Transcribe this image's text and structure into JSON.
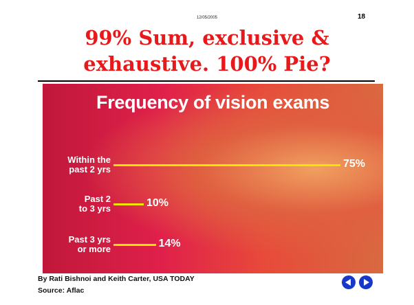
{
  "slide": {
    "date": "12/05/2005",
    "page_number": "18",
    "title": [
      "99% Sum, exclusive &",
      "exhaustive.  100% Pie?"
    ]
  },
  "chart_data": {
    "type": "bar",
    "orientation": "horizontal",
    "title": "Frequency of vision exams",
    "categories": [
      "Within the\npast 2 yrs",
      "Past 2\nto 3 yrs",
      "Past 3 yrs\nor more"
    ],
    "values": [
      75,
      10,
      14
    ],
    "value_labels": [
      "75%",
      "10%",
      "14%"
    ],
    "color": "#f5e400"
  },
  "footer": {
    "credit": "By Rati Bishnoi and Keith Carter, USA TODAY",
    "source": "Source: Aflac"
  }
}
